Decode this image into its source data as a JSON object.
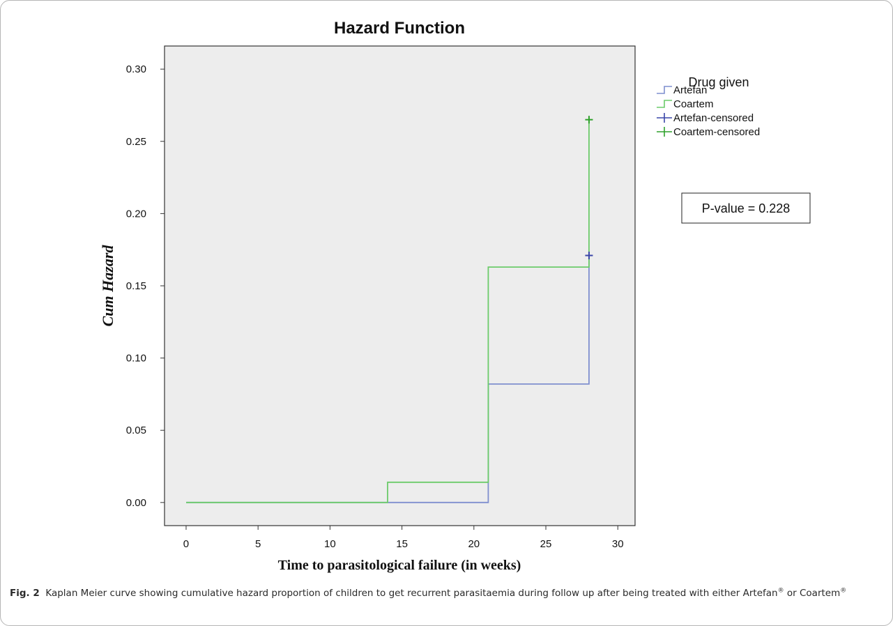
{
  "chart_data": {
    "type": "line",
    "step": true,
    "title": "Hazard Function",
    "xlabel": "Time to parasitological failure (in weeks)",
    "ylabel": "Cum Hazard",
    "xlim": [
      -1.5,
      31.2
    ],
    "ylim": [
      -0.016,
      0.316
    ],
    "x_ticks": [
      0,
      5,
      10,
      15,
      20,
      25,
      30
    ],
    "x_tick_labels": [
      "0",
      "5",
      "10",
      "15",
      "20",
      "25",
      "30"
    ],
    "y_ticks": [
      0.0,
      0.05,
      0.1,
      0.15,
      0.2,
      0.25,
      0.3
    ],
    "y_tick_labels": [
      "0.00",
      "0.05",
      "0.10",
      "0.15",
      "0.20",
      "0.25",
      "0.30"
    ],
    "grid": false,
    "legend_title": "Drug given",
    "legend_position": "outside-right",
    "series": [
      {
        "name": "Artefan",
        "color": "#7f8fcf",
        "x": [
          0,
          21,
          21,
          28,
          28
        ],
        "y": [
          0.0,
          0.0,
          0.082,
          0.082,
          0.171
        ]
      },
      {
        "name": "Coartem",
        "color": "#6ccb6a",
        "x": [
          0,
          14,
          14,
          21,
          21,
          28,
          28
        ],
        "y": [
          0.0,
          0.0,
          0.014,
          0.014,
          0.163,
          0.163,
          0.265
        ]
      }
    ],
    "censored": [
      {
        "name": "Artefan-censored",
        "color": "#3a46a8",
        "x": 28,
        "y": 0.171
      },
      {
        "name": "Coartem-censored",
        "color": "#2fa12b",
        "x": 28,
        "y": 0.265
      }
    ],
    "legend_items": [
      {
        "label": "Artefan",
        "kind": "step",
        "color": "#7f8fcf"
      },
      {
        "label": "Coartem",
        "kind": "step",
        "color": "#6ccb6a"
      },
      {
        "label": "Artefan-censored",
        "kind": "cross",
        "color": "#3a46a8"
      },
      {
        "label": "Coartem-censored",
        "kind": "cross",
        "color": "#2fa12b"
      }
    ],
    "annotation": "P-value = 0.228",
    "plot_background": "#ededed"
  },
  "caption": {
    "label": "Fig. 2",
    "part1": "Kaplan Meier curve showing cumulative hazard proportion of children to get recurrent parasitaemia during follow up after being treated with either Artefan",
    "sup1": "®",
    "part2": " or Coartem",
    "sup2": "®"
  }
}
